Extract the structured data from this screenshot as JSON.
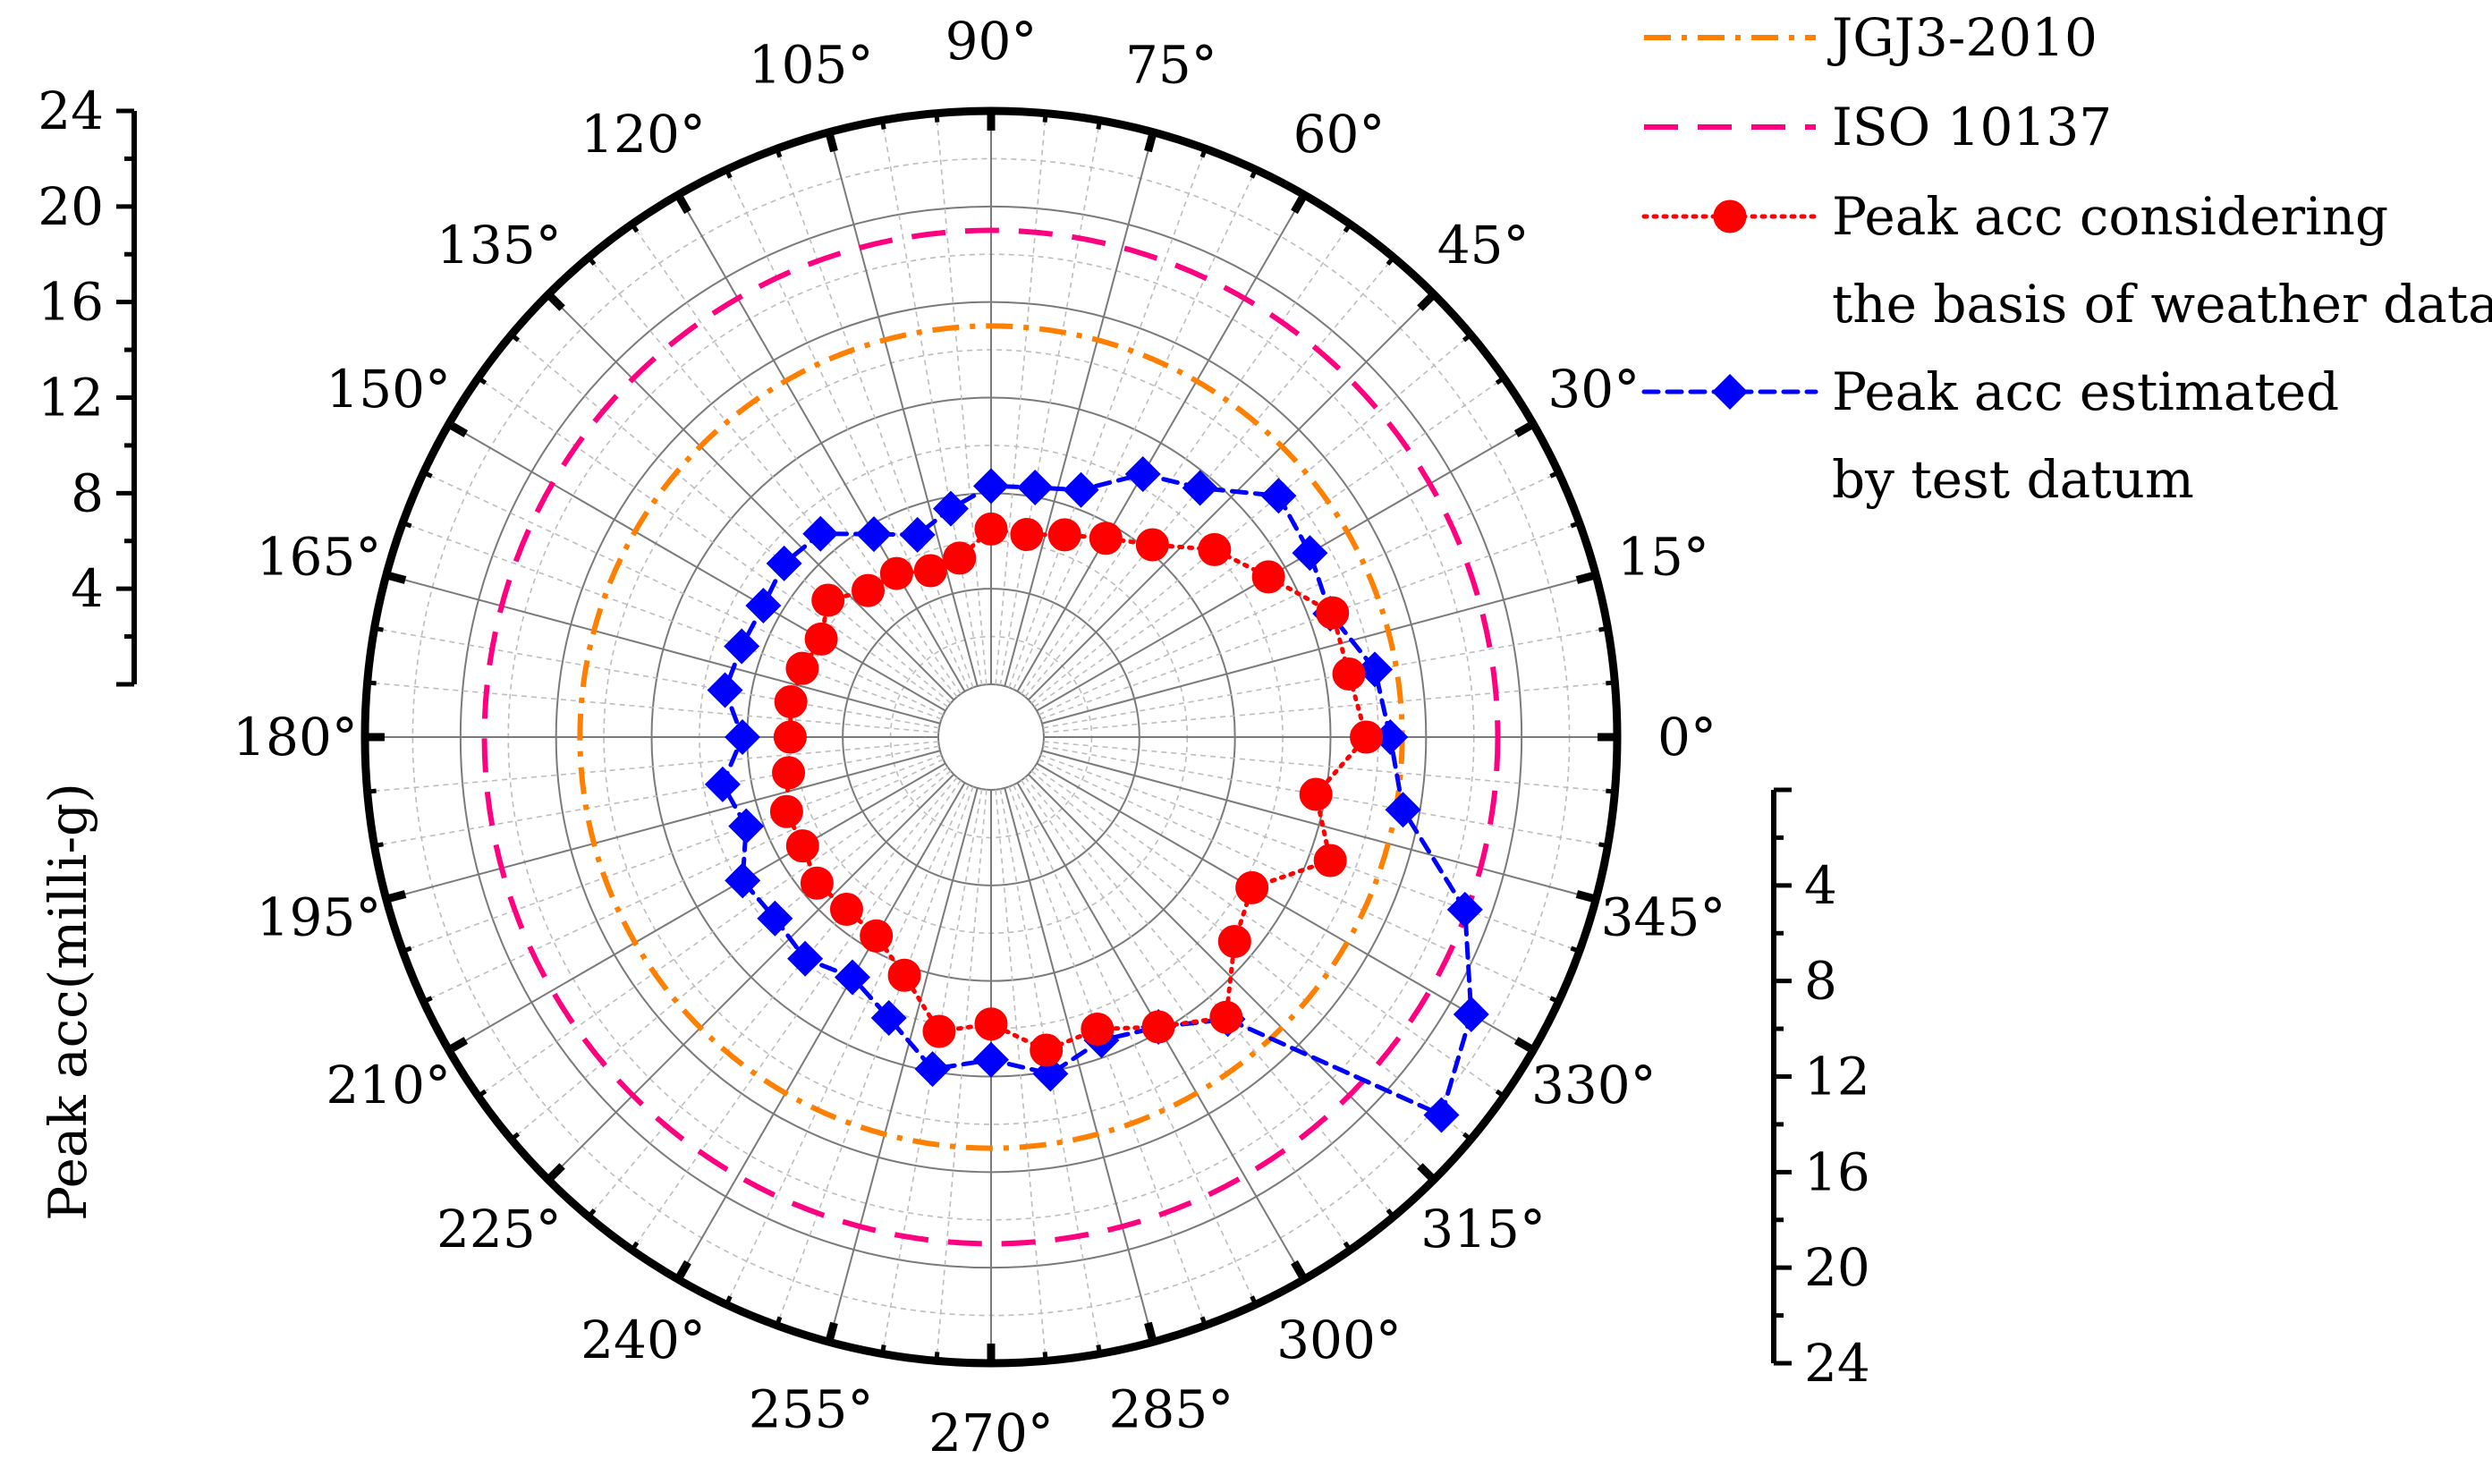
{
  "chart_data": {
    "type": "polar-line",
    "ylabel": "Peak acc(milli-g)",
    "angle_unit": "°",
    "angle_ticks": [
      0,
      15,
      30,
      45,
      60,
      75,
      90,
      105,
      120,
      135,
      150,
      165,
      180,
      195,
      210,
      225,
      240,
      255,
      270,
      285,
      300,
      315,
      330,
      345
    ],
    "radial_ticks": [
      4,
      8,
      12,
      16,
      20,
      24
    ],
    "rlim": [
      0,
      24
    ],
    "grid": true,
    "legend_position": "top-right",
    "reference_lines": [
      {
        "name": "JGJ3-2010",
        "value": 15,
        "color": "#ff7f00",
        "style": "dash-dot"
      },
      {
        "name": "ISO 10137",
        "value": 19,
        "color": "#ff0080",
        "style": "dashed"
      }
    ],
    "series": [
      {
        "name": "Peak acc considering the basis of weather data",
        "legend_lines": [
          "Peak acc considering",
          "the basis of weather data"
        ],
        "color": "#ff0000",
        "marker": "circle",
        "style": "dotted",
        "angles": [
          0,
          10,
          20,
          30,
          40,
          50,
          60,
          70,
          80,
          90,
          100,
          110,
          120,
          130,
          140,
          150,
          160,
          170,
          180,
          190,
          200,
          210,
          220,
          230,
          240,
          250,
          260,
          270,
          280,
          290,
          300,
          310,
          320,
          330,
          340,
          350
        ],
        "values": [
          13.5,
          13,
          13,
          11.2,
          10,
          8.3,
          7.4,
          6.8,
          6.4,
          6.5,
          5.4,
          5.2,
          5.7,
          5.8,
          6.7,
          6,
          6.2,
          6.3,
          6.2,
          6.4,
          6.9,
          6.9,
          7.3,
          7.2,
          7.4,
          8.4,
          10.3,
          9.8,
          11.1,
          10.8,
          11.8,
          13.1,
          11.1,
          10.4,
          12.9,
          11.6
        ]
      },
      {
        "name": "Peak acc estimated by test datum",
        "legend_lines": [
          "Peak acc estimated",
          "by test datum"
        ],
        "color": "#0000ff",
        "marker": "diamond",
        "style": "dashed",
        "angles": [
          0,
          10,
          20,
          30,
          40,
          50,
          60,
          70,
          80,
          90,
          100,
          110,
          120,
          130,
          140,
          150,
          160,
          170,
          180,
          190,
          200,
          210,
          220,
          230,
          240,
          250,
          260,
          270,
          280,
          290,
          300,
          310,
          320,
          330,
          340,
          350
        ],
        "values": [
          14.5,
          14.1,
          12.9,
          13.2,
          13.5,
          11.4,
          10.5,
          8.8,
          8.4,
          8.3,
          7.5,
          6.8,
          7.6,
          8.9,
          9.1,
          8.8,
          8.9,
          9.1,
          8.2,
          9.2,
          8.7,
          9.8,
          9.6,
          9.9,
          9.4,
          10.3,
          11.9,
          11.3,
          12.1,
          11.3,
          11.8,
          13.2,
          22.4,
          21,
          18.9,
          15.3
        ]
      }
    ]
  }
}
